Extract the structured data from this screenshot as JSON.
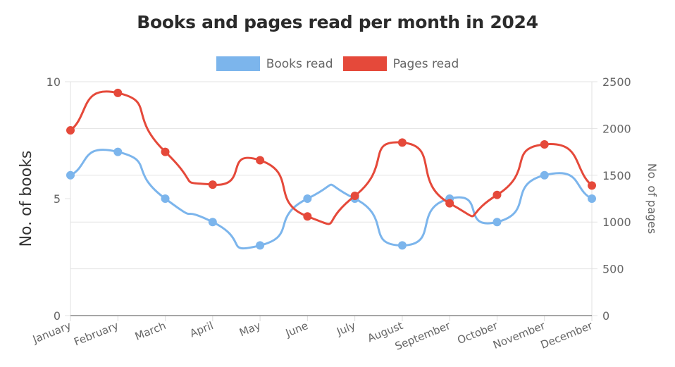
{
  "chart_data": {
    "type": "line",
    "title": "Books and pages read per month in 2024",
    "categories": [
      "January",
      "February",
      "March",
      "April",
      "May",
      "June",
      "July",
      "August",
      "September",
      "October",
      "November",
      "December"
    ],
    "series": [
      {
        "name": "Books read",
        "axis": "left",
        "color": "#7cb5ec",
        "values": [
          6,
          7,
          5,
          4,
          3,
          5,
          5,
          3,
          5,
          4,
          6,
          5
        ]
      },
      {
        "name": "Pages read",
        "axis": "right",
        "color": "#e5493a",
        "values": [
          1980,
          2380,
          1750,
          1400,
          1660,
          1060,
          1280,
          1850,
          1200,
          1290,
          1830,
          1390
        ]
      }
    ],
    "y_left": {
      "label": "No. of books",
      "ylim": [
        0,
        10
      ],
      "ticks": [
        0,
        5,
        10
      ]
    },
    "y_right": {
      "label": "No. of pages",
      "ylim": [
        0,
        2500
      ],
      "ticks": [
        0,
        500,
        1000,
        1500,
        2000,
        2500
      ]
    },
    "xlabel": "",
    "grid": true,
    "legend_position": "top",
    "curve": "smooth"
  },
  "legend": [
    {
      "label": "Books read",
      "color": "#7cb5ec"
    },
    {
      "label": "Pages read",
      "color": "#e5493a"
    }
  ]
}
